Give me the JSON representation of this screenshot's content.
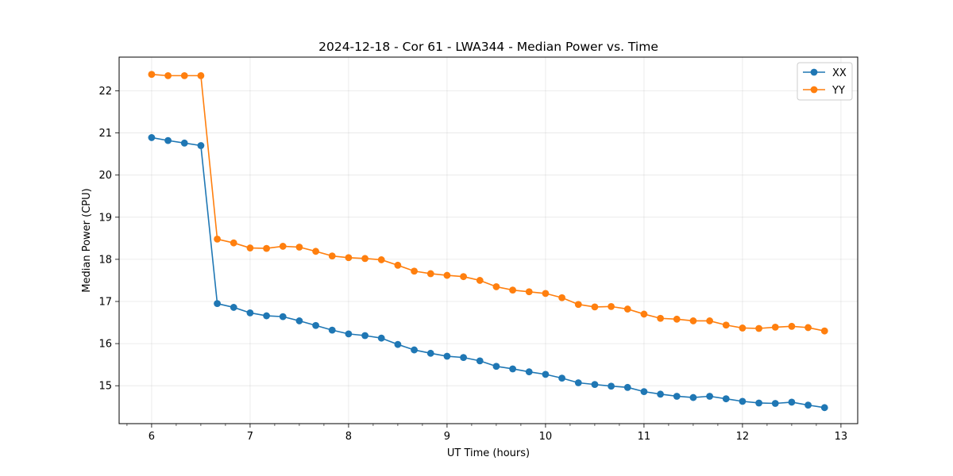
{
  "chart_data": {
    "type": "line",
    "title": "2024-12-18 - Cor 61 - LWA344 - Median Power vs. Time",
    "xlabel": "UT Time (hours)",
    "ylabel": "Median Power (CPU)",
    "xlim": [
      5.67,
      13.17
    ],
    "ylim": [
      14.1,
      22.8
    ],
    "xticks": [
      6,
      7,
      8,
      9,
      10,
      11,
      12,
      13
    ],
    "yticks": [
      15,
      16,
      17,
      18,
      19,
      20,
      21,
      22
    ],
    "grid": true,
    "legend_position": "top-right",
    "x": [
      6.0,
      6.1667,
      6.3333,
      6.5,
      6.6667,
      6.8333,
      7.0,
      7.1667,
      7.3333,
      7.5,
      7.6667,
      7.8333,
      8.0,
      8.1667,
      8.3333,
      8.5,
      8.6667,
      8.8333,
      9.0,
      9.1667,
      9.3333,
      9.5,
      9.6667,
      9.8333,
      10.0,
      10.1667,
      10.3333,
      10.5,
      10.6667,
      10.8333,
      11.0,
      11.1667,
      11.3333,
      11.5,
      11.6667,
      11.8333,
      12.0,
      12.1667,
      12.3333,
      12.5,
      12.6667,
      12.8333
    ],
    "series": [
      {
        "name": "XX",
        "color": "#1f77b4",
        "values": [
          20.89,
          20.82,
          20.76,
          20.7,
          16.95,
          16.86,
          16.73,
          16.66,
          16.64,
          16.54,
          16.43,
          16.32,
          16.23,
          16.19,
          16.13,
          15.98,
          15.85,
          15.77,
          15.7,
          15.67,
          15.59,
          15.46,
          15.4,
          15.33,
          15.27,
          15.18,
          15.07,
          15.03,
          14.99,
          14.96,
          14.86,
          14.8,
          14.75,
          14.72,
          14.75,
          14.69,
          14.63,
          14.59,
          14.58,
          14.61,
          14.54,
          14.48
        ]
      },
      {
        "name": "YY",
        "color": "#ff7f0e",
        "values": [
          22.39,
          22.36,
          22.36,
          22.36,
          18.48,
          18.39,
          18.27,
          18.26,
          18.31,
          18.29,
          18.19,
          18.08,
          18.04,
          18.02,
          17.99,
          17.86,
          17.72,
          17.66,
          17.62,
          17.59,
          17.5,
          17.35,
          17.27,
          17.23,
          17.19,
          17.09,
          16.93,
          16.87,
          16.88,
          16.82,
          16.7,
          16.6,
          16.58,
          16.54,
          16.54,
          16.44,
          16.37,
          16.36,
          16.39,
          16.41,
          16.38,
          16.3
        ]
      }
    ]
  }
}
